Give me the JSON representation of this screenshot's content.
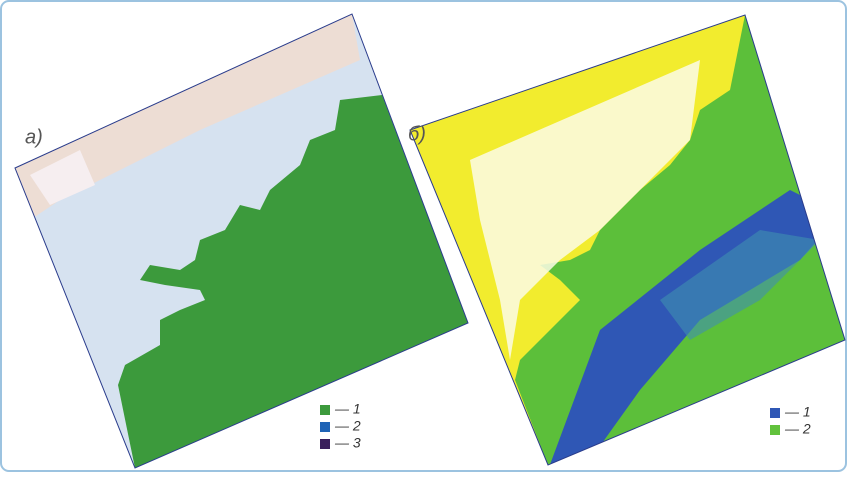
{
  "panels": [
    {
      "label": "а)",
      "legend": [
        {
          "label": "— 1",
          "color": "#3c9a3c"
        },
        {
          "label": "— 2",
          "color": "#1f63b5"
        },
        {
          "label": "— 3",
          "color": "#3a1f5c"
        }
      ]
    },
    {
      "label": "б)",
      "legend": [
        {
          "label": "— 1",
          "color": "#2f57b5"
        },
        {
          "label": "— 2",
          "color": "#62c23c"
        }
      ]
    }
  ]
}
